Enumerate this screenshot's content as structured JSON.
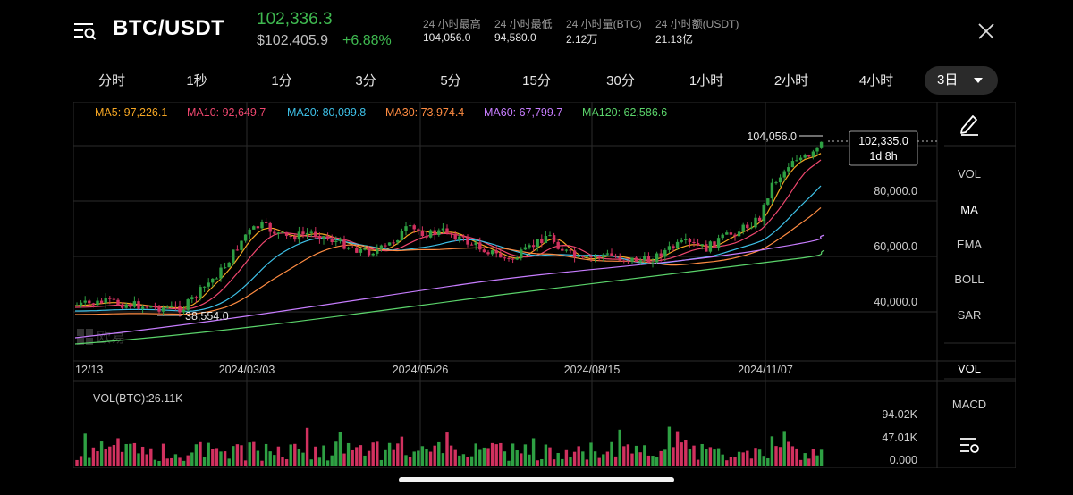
{
  "header": {
    "pair": "BTC/USDT",
    "last_price": "102,336.3",
    "usd_price": "$102,405.9",
    "change": "+6.88%",
    "stats": [
      {
        "label": "24 小时最高",
        "value": "104,056.0"
      },
      {
        "label": "24 小时最低",
        "value": "94,580.0"
      },
      {
        "label": "24 小时量(BTC)",
        "value": "2.12万"
      },
      {
        "label": "24 小时额(USDT)",
        "value": "21.13亿"
      }
    ],
    "icons": {
      "menu": "search-list-icon",
      "close": "close-icon"
    }
  },
  "timeframes": [
    "分时",
    "1秒",
    "1分",
    "3分",
    "5分",
    "15分",
    "30分",
    "1小时",
    "2小时",
    "4小时"
  ],
  "selected_timeframe": "3日",
  "ma_legend": [
    {
      "label": "MA5: 97,226.1",
      "color": "#f5a623"
    },
    {
      "label": "MA10: 92,649.7",
      "color": "#ef476f"
    },
    {
      "label": "MA20: 80,099.8",
      "color": "#3ec1e8"
    },
    {
      "label": "MA30: 73,974.4",
      "color": "#ff8c42"
    },
    {
      "label": "MA60: 67,799.7",
      "color": "#c77dff"
    },
    {
      "label": "MA120: 62,586.6",
      "color": "#5bd46b"
    }
  ],
  "price_axis": [
    "80,000.0",
    "60,000.0",
    "40,000.0"
  ],
  "date_axis": [
    "12/13",
    "2024/03/03",
    "2024/05/26",
    "2024/08/15",
    "2024/11/07"
  ],
  "annotations": {
    "high": "104,056.0",
    "low": "38,554.0",
    "current_price": "102,335.0",
    "countdown": "1d 8h"
  },
  "watermark": "欧易",
  "volume": {
    "label": "VOL(BTC):26.11K",
    "axis": [
      "94.02K",
      "47.01K",
      "0.000"
    ]
  },
  "side_panel": {
    "indicators_main": [
      "VOL",
      "MA",
      "EMA",
      "BOLL",
      "SAR"
    ],
    "indicators_sub": [
      "VOL",
      "MACD"
    ],
    "active_main": "MA",
    "icons": {
      "draw": "pen-draw-icon",
      "settings": "indicator-settings-icon"
    }
  },
  "colors": {
    "up": "#2ea043",
    "down": "#d1315f",
    "text_dim": "#9a9a9a"
  }
}
